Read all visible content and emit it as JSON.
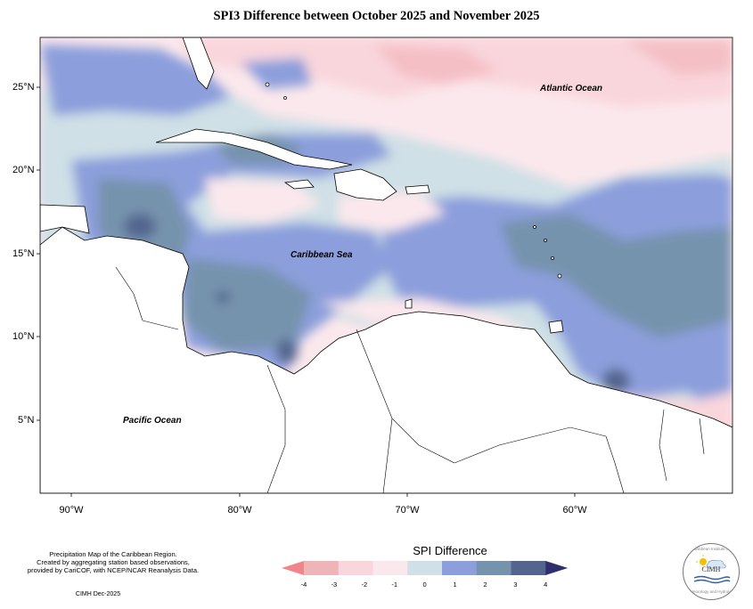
{
  "title": "SPI3 Difference between October 2025 and November 2025",
  "axes": {
    "lat_labels": [
      "25°N",
      "20°N",
      "15°N",
      "10°N",
      "5°N"
    ],
    "lon_labels": [
      "90°W",
      "80°W",
      "70°W",
      "60°W"
    ]
  },
  "map_labels": {
    "atlantic": "Atlantic Ocean",
    "caribbean": "Caribbean Sea",
    "pacific": "Pacific Ocean"
  },
  "credits": {
    "line1": "Precipitation Map of the Caribbean Region.",
    "line2": "Created by aggregating station based observations,",
    "line3": "provided by CariCOF, with NCEP/NCAR Reanalysis Data.",
    "date": "CIMH Dec-2025"
  },
  "legend": {
    "title": "SPI Difference",
    "ticks": [
      "-4",
      "-3",
      "-2",
      "-1",
      "0",
      "1",
      "2",
      "3",
      "4"
    ],
    "colors": [
      "#f0868c",
      "#eeb4b8",
      "#f9d6dc",
      "#fbe8ec",
      "#cfe0e6",
      "#8c9fdc",
      "#7693ad",
      "#53658e",
      "#2f2f6e"
    ]
  },
  "logo": {
    "name": "CIMH",
    "ring_top": "Caribbean Institute for",
    "ring_bottom": "Meteorology and Hydrology"
  }
}
